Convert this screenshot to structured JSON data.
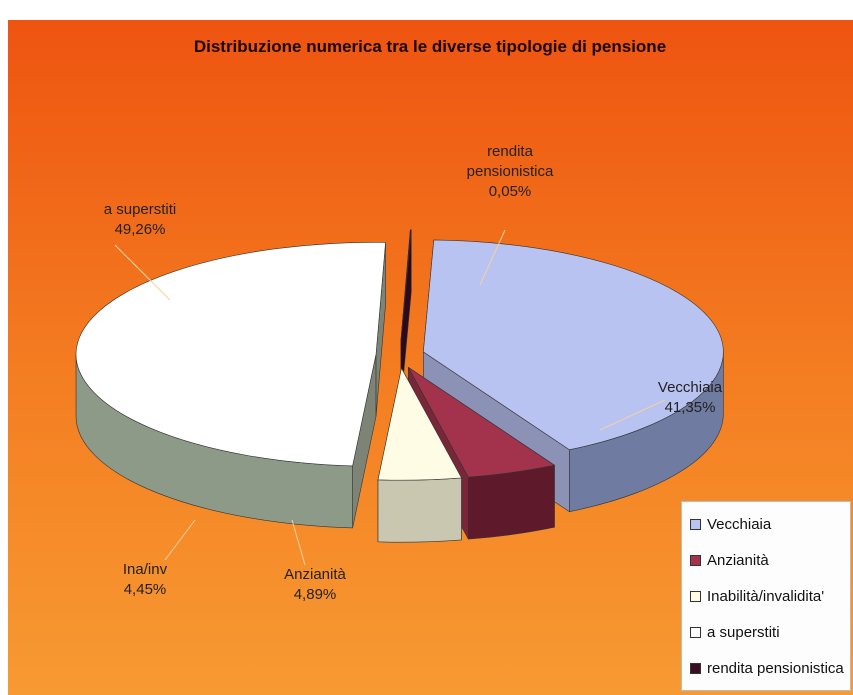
{
  "chart_data": {
    "type": "pie3d",
    "title": "Distribuzione numerica tra le diverse tipologie di pensione",
    "categories": [
      "Vecchiaia",
      "Anzianità",
      "Inabilità/invalidita'",
      "a superstiti",
      "rendita pensionistica"
    ],
    "data_label_names": [
      "Vecchiaia",
      "Anzianità",
      "Ina/inv",
      "a superstiti",
      "rendita pensionistica"
    ],
    "values": [
      41.35,
      4.89,
      4.45,
      49.26,
      0.05
    ],
    "value_labels": [
      "41,35%",
      "4,89%",
      "4,45%",
      "49,26%",
      "0,05%"
    ],
    "colors": [
      "#b9c3f2",
      "#a3324c",
      "#fffce6",
      "#ffffff",
      "#3c0c22"
    ],
    "legend": "bottom-right"
  }
}
